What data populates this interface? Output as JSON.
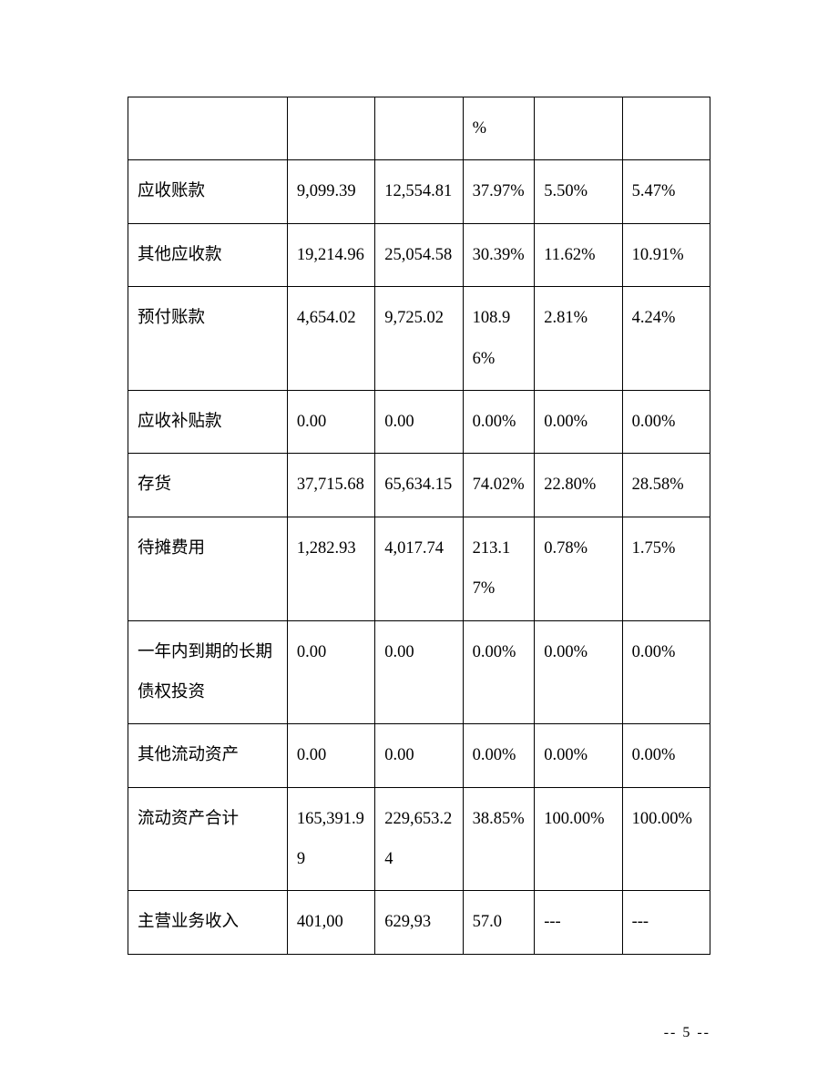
{
  "table": {
    "border_color": "#000000",
    "text_color": "#000000",
    "font_size_pt": 14,
    "line_height": 2.4,
    "column_widths_pct": [
      24.5,
      13.5,
      13.5,
      11,
      13.5,
      13.5
    ],
    "rows": [
      [
        "",
        "",
        "",
        "%",
        "",
        ""
      ],
      [
        "应收账款",
        "9,099.39",
        "12,554.81",
        "37.97%",
        "5.50%",
        "5.47%"
      ],
      [
        "其他应收款",
        "19,214.96",
        "25,054.58",
        "30.39%",
        "11.62%",
        "10.91%"
      ],
      [
        "预付账款",
        "4,654.02",
        "9,725.02",
        "108.96%",
        "2.81%",
        "4.24%"
      ],
      [
        "应收补贴款",
        "0.00",
        "0.00",
        "0.00%",
        "0.00%",
        "0.00%"
      ],
      [
        "存货",
        "37,715.68",
        "65,634.15",
        "74.02%",
        "22.80%",
        "28.58%"
      ],
      [
        "待摊费用",
        "1,282.93",
        "4,017.74",
        "213.17%",
        "0.78%",
        "1.75%"
      ],
      [
        "一年内到期的长期债权投资",
        "0.00",
        "0.00",
        "0.00%",
        "0.00%",
        "0.00%"
      ],
      [
        "其他流动资产",
        "0.00",
        "0.00",
        "0.00%",
        "0.00%",
        "0.00%"
      ],
      [
        "流动资产合计",
        "165,391.99",
        "229,653.24",
        "38.85%",
        "100.00%",
        "100.00%"
      ],
      [
        "主营业务收入",
        "401,00",
        "629,93",
        "57.0",
        " ---",
        " ---"
      ]
    ]
  },
  "footer": {
    "page_number": "-- 5 --",
    "font_size_pt": 12
  }
}
